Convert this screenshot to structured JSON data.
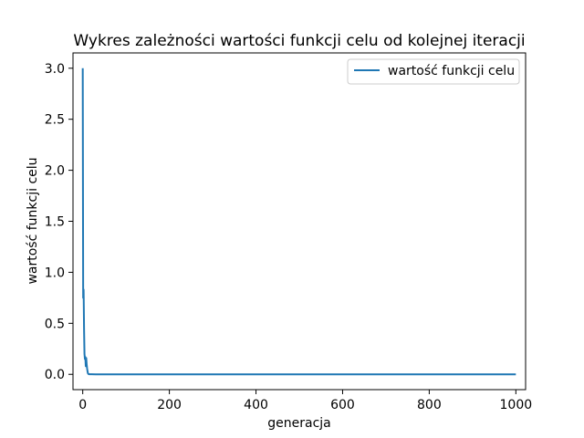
{
  "chart_data": {
    "type": "line",
    "title": "Wykres zależności wartości funkcji celu od kolejnej iteracji",
    "xlabel": "generacja",
    "ylabel": "wartość funkcji celu",
    "xlim": [
      -22.5,
      1022.5
    ],
    "ylim": [
      -0.15,
      3.15
    ],
    "x_ticks": [
      0,
      200,
      400,
      600,
      800,
      1000
    ],
    "y_ticks": [
      0.0,
      0.5,
      1.0,
      1.5,
      2.0,
      2.5,
      3.0
    ],
    "x_tick_labels": [
      "0",
      "200",
      "400",
      "600",
      "800",
      "1000"
    ],
    "y_tick_labels": [
      "0.0",
      "0.5",
      "1.0",
      "1.5",
      "2.0",
      "2.5",
      "3.0"
    ],
    "grid": false,
    "legend_position": "top-right",
    "series": [
      {
        "name": "wartość funkcji celu",
        "color": "#1f77b4",
        "x": [
          0,
          1,
          2,
          3,
          4,
          5,
          6,
          7,
          8,
          9,
          10,
          11,
          12,
          13,
          14,
          15,
          20,
          30,
          50,
          100,
          200,
          400,
          600,
          800,
          1000
        ],
        "y": [
          3.0,
          0.75,
          0.83,
          0.45,
          0.2,
          0.15,
          0.17,
          0.08,
          0.16,
          0.1,
          0.06,
          0.03,
          0.01,
          0.005,
          0.002,
          0.001,
          0.0005,
          0.0002,
          0.0001,
          0.0,
          0.0,
          0.0,
          0.0,
          0.0,
          0.0
        ]
      }
    ]
  }
}
